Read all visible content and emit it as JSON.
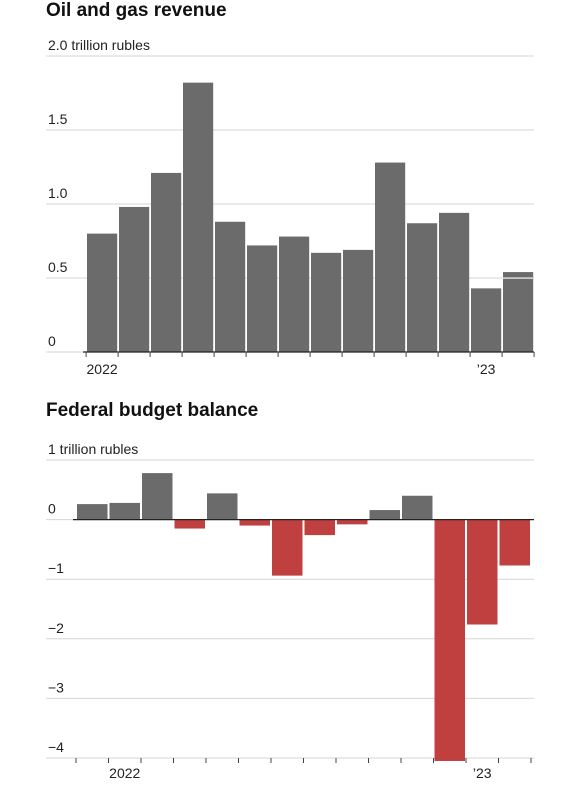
{
  "chart_data": [
    {
      "type": "bar",
      "title": "Oil and gas revenue",
      "unit": "trillion rubles",
      "ylim": [
        0,
        2.0
      ],
      "yticks": [
        {
          "value": 0,
          "label": "0"
        },
        {
          "value": 0.5,
          "label": "0.5"
        },
        {
          "value": 1.0,
          "label": "1.0"
        },
        {
          "value": 1.5,
          "label": "1.5"
        },
        {
          "value": 2.0,
          "label": "2.0 trillion rubles"
        }
      ],
      "x_labels": [
        {
          "index": 0,
          "label": "2022"
        },
        {
          "index": 12,
          "label": "’23"
        }
      ],
      "values": [
        0.8,
        0.98,
        1.21,
        1.82,
        0.88,
        0.72,
        0.78,
        0.67,
        0.69,
        1.28,
        0.87,
        0.94,
        0.43,
        0.54
      ],
      "bar_color": "#6b6b6b",
      "grid": true
    },
    {
      "type": "bar",
      "title": "Federal budget balance",
      "unit": "trillion rubles",
      "ylim": [
        -4,
        1
      ],
      "yticks": [
        {
          "value": 1,
          "label": "1 trillion rubles"
        },
        {
          "value": 0,
          "label": "0"
        },
        {
          "value": -1,
          "label": "−1"
        },
        {
          "value": -2,
          "label": "−2"
        },
        {
          "value": -3,
          "label": "−3"
        },
        {
          "value": -4,
          "label": "−4"
        }
      ],
      "x_labels": [
        {
          "index": 1,
          "label": "2022"
        },
        {
          "index": 12,
          "label": "’23"
        }
      ],
      "values": [
        0.26,
        0.28,
        0.78,
        -0.15,
        0.44,
        -0.1,
        -0.94,
        -0.26,
        -0.08,
        0.16,
        0.4,
        -4.05,
        -1.76,
        -0.77
      ],
      "positive_color": "#6b6b6b",
      "negative_color": "#c0403f",
      "grid": true
    }
  ]
}
